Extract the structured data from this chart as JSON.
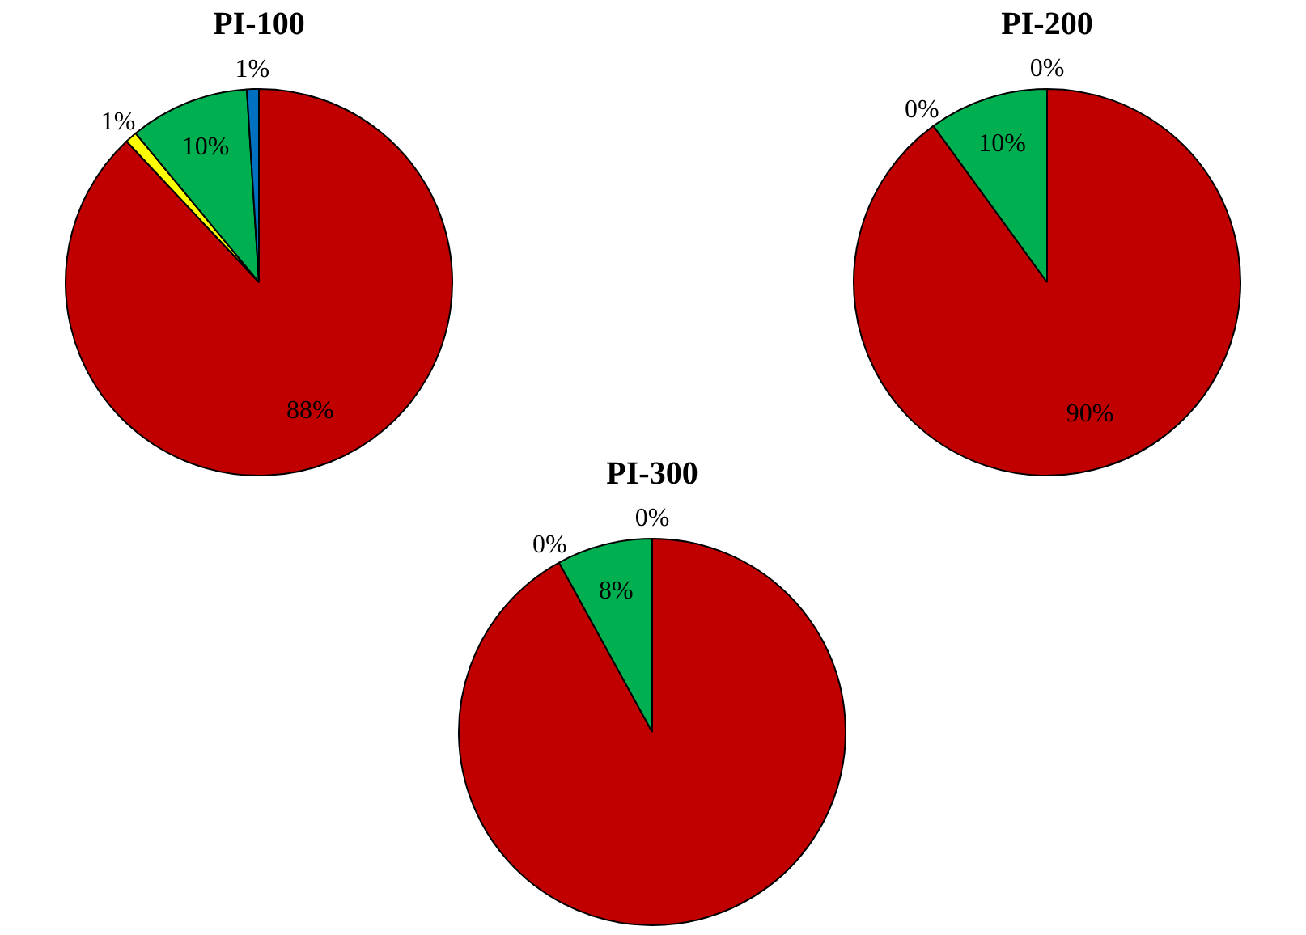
{
  "chart_data": [
    {
      "type": "pie",
      "title": "PI-100",
      "categories": [
        null,
        null,
        null,
        null
      ],
      "values": [
        88,
        1,
        10,
        1
      ],
      "colors": [
        "#c00000",
        "#ffff00",
        "#00b050",
        "#0070c0"
      ],
      "value_labels": [
        "88%",
        "1%",
        "10%",
        "1%"
      ],
      "legend": false
    },
    {
      "type": "pie",
      "title": "PI-200",
      "categories": [
        null,
        null,
        null,
        null
      ],
      "values": [
        90,
        0,
        10,
        0
      ],
      "colors": [
        "#c00000",
        "#ffff00",
        "#00b050",
        "#0070c0"
      ],
      "value_labels": [
        "90%",
        "0%",
        "10%",
        "0%"
      ],
      "legend": false
    },
    {
      "type": "pie",
      "title": "PI-300",
      "categories": [
        null,
        null,
        null,
        null
      ],
      "values": [
        92,
        0,
        8,
        0
      ],
      "colors": [
        "#c00000",
        "#ffff00",
        "#00b050",
        "#0070c0"
      ],
      "value_labels": [
        null,
        "0%",
        "8%",
        "0%"
      ],
      "legend": false
    }
  ]
}
